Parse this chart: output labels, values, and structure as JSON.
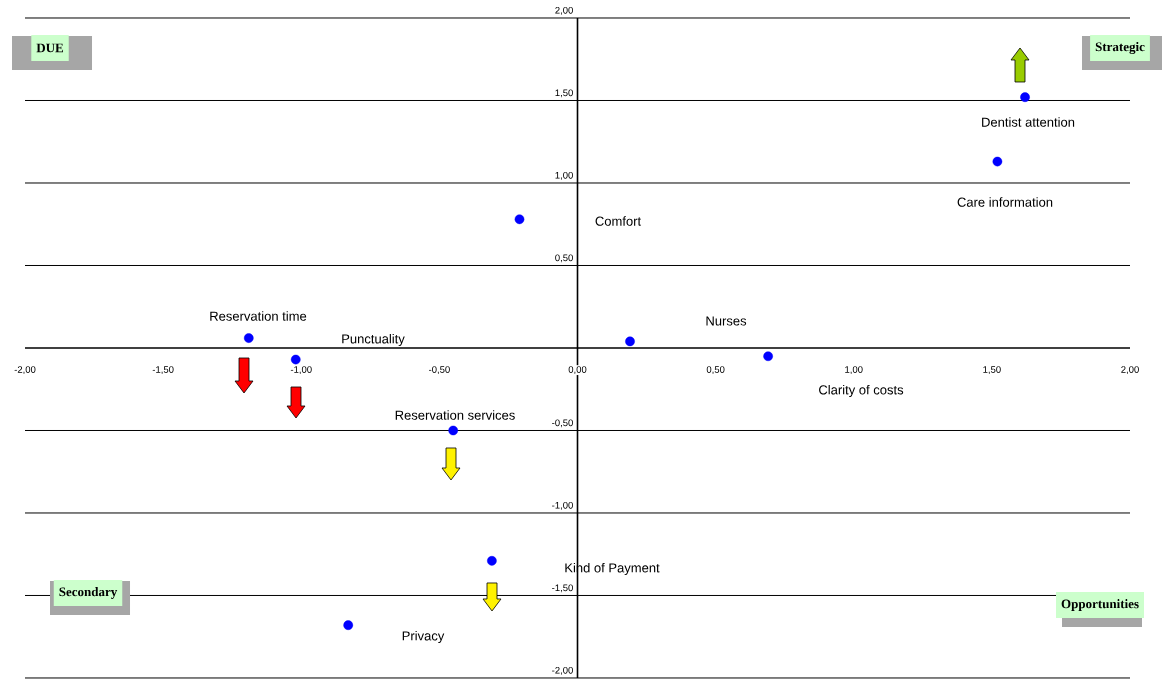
{
  "chart_data": {
    "type": "scatter",
    "marker": "circle",
    "color": "#0000ff",
    "grid": "y",
    "x": [
      1.62,
      1.52,
      -0.21,
      -1.19,
      -1.02,
      0.19,
      0.69,
      -0.45,
      -0.31,
      -0.83
    ],
    "values": [
      1.52,
      1.13,
      0.78,
      0.06,
      -0.07,
      0.04,
      -0.05,
      -0.5,
      -1.29,
      -1.68
    ],
    "xlim": [
      -2,
      2
    ],
    "ylim": [
      -2,
      2
    ],
    "xticks": [
      {
        "value": -2,
        "label": "-2,00"
      },
      {
        "value": -1.5,
        "label": "-1,50"
      },
      {
        "value": -1,
        "label": "-1,00"
      },
      {
        "value": -0.5,
        "label": "-0,50"
      },
      {
        "value": 0,
        "label": "0,00"
      },
      {
        "value": 0.5,
        "label": "0,50"
      },
      {
        "value": 1,
        "label": "1,00"
      },
      {
        "value": 1.5,
        "label": "1,50"
      },
      {
        "value": 2,
        "label": "2,00"
      }
    ],
    "yticks": [
      {
        "value": -2,
        "label": "-2,00"
      },
      {
        "value": -1.5,
        "label": "-1,50"
      },
      {
        "value": -1,
        "label": "-1,00"
      },
      {
        "value": -0.5,
        "label": "-0,50"
      },
      {
        "value": 0.5,
        "label": "0,50"
      },
      {
        "value": 1,
        "label": "1,00"
      },
      {
        "value": 1.5,
        "label": "1,50"
      },
      {
        "value": 2,
        "label": "2,00"
      }
    ],
    "annotations": [
      "Dentist attention",
      "Care information",
      "Comfort",
      "Reservation time",
      "Punctuality",
      "Nurses",
      "Clarity of costs",
      "Reservation services",
      "Kind of Payment",
      "Privacy",
      "DUE",
      "Strategic",
      "Secondary",
      "Opportunities"
    ]
  }
}
